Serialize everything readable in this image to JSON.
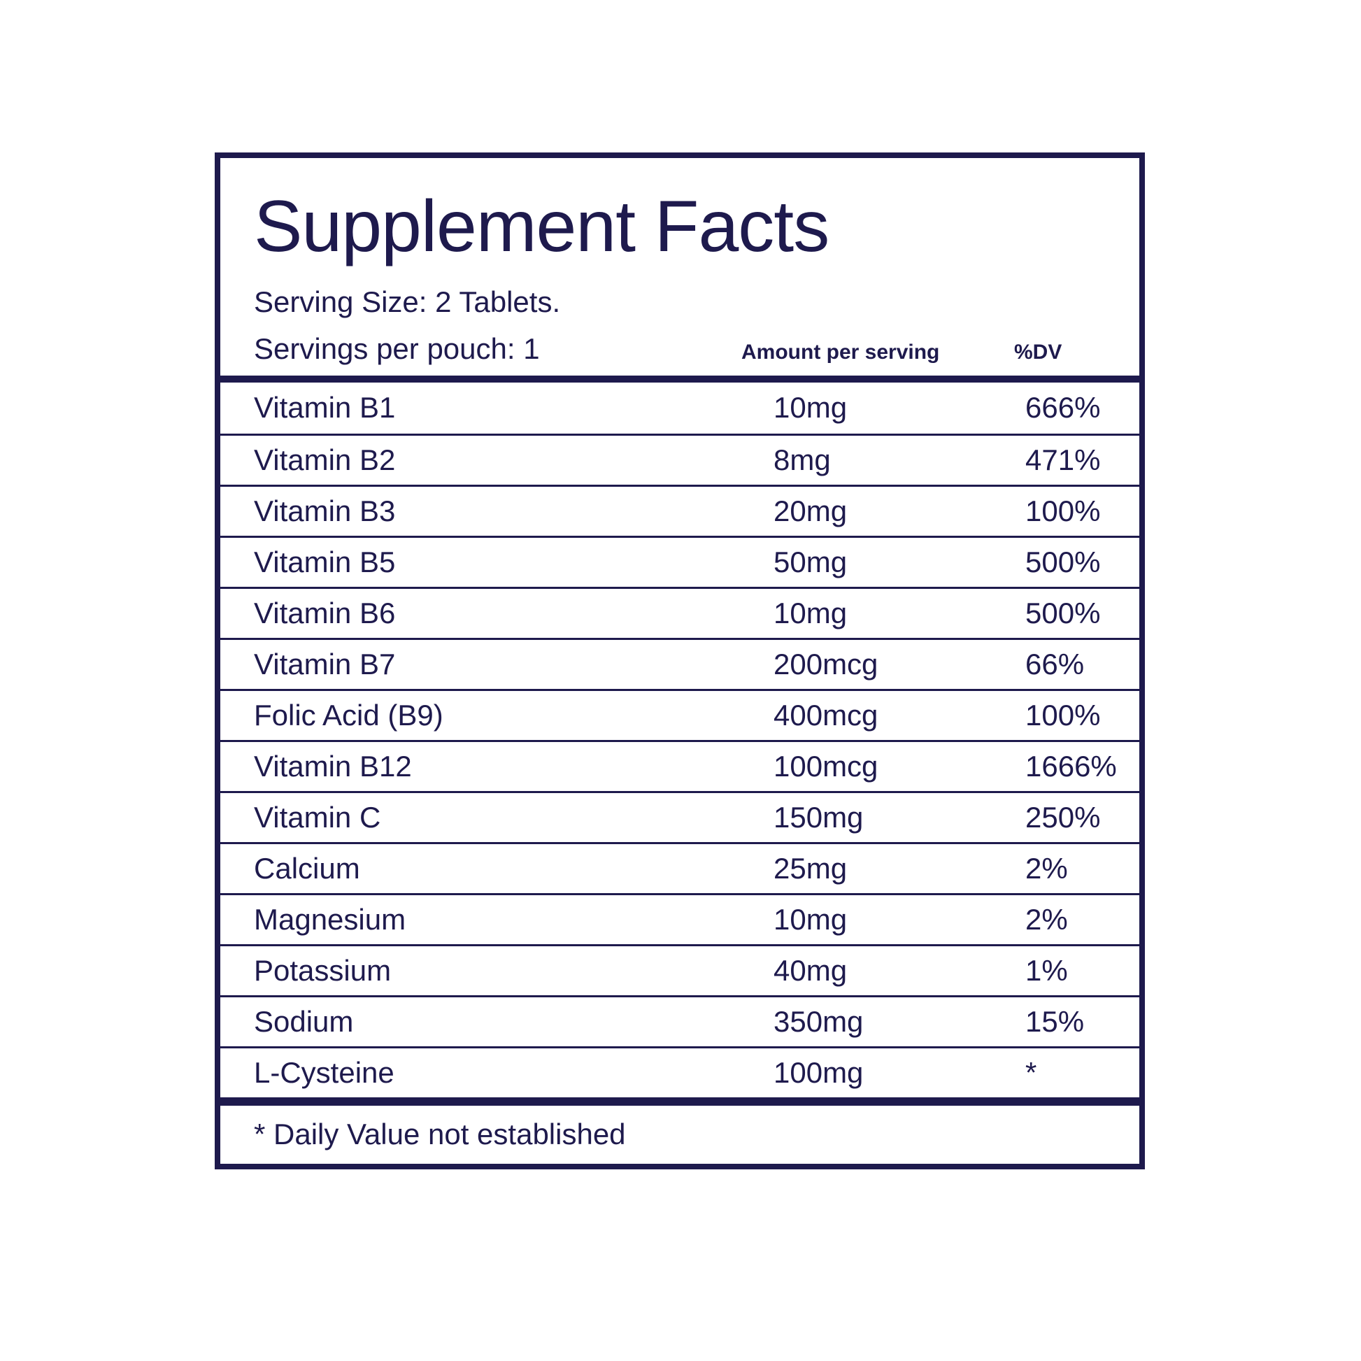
{
  "label": {
    "title": "Supplement Facts",
    "serving_size": "Serving Size: 2 Tablets.",
    "servings_per_pouch": "Servings per pouch: 1",
    "columns": {
      "amount": "Amount per serving",
      "dv": "%DV"
    },
    "rows": [
      {
        "name": "Vitamin B1",
        "amount": "10mg",
        "dv": "666%"
      },
      {
        "name": "Vitamin B2",
        "amount": "8mg",
        "dv": "471%"
      },
      {
        "name": "Vitamin B3",
        "amount": "20mg",
        "dv": "100%"
      },
      {
        "name": "Vitamin B5",
        "amount": "50mg",
        "dv": "500%"
      },
      {
        "name": "Vitamin B6",
        "amount": "10mg",
        "dv": "500%"
      },
      {
        "name": "Vitamin B7",
        "amount": "200mcg",
        "dv": "66%"
      },
      {
        "name": "Folic Acid (B9)",
        "amount": "400mcg",
        "dv": "100%"
      },
      {
        "name": "Vitamin B12",
        "amount": "100mcg",
        "dv": "1666%"
      },
      {
        "name": "Vitamin C",
        "amount": "150mg",
        "dv": "250%"
      },
      {
        "name": "Calcium",
        "amount": "25mg",
        "dv": "2%"
      },
      {
        "name": "Magnesium",
        "amount": "10mg",
        "dv": "2%"
      },
      {
        "name": "Potassium",
        "amount": "40mg",
        "dv": "1%"
      },
      {
        "name": "Sodium",
        "amount": "350mg",
        "dv": "15%"
      },
      {
        "name": "L-Cysteine",
        "amount": "100mg",
        "dv": "*"
      }
    ],
    "footnote": "* Daily Value not established",
    "colors": {
      "ink": "#1e1a4d",
      "background": "#ffffff"
    }
  }
}
